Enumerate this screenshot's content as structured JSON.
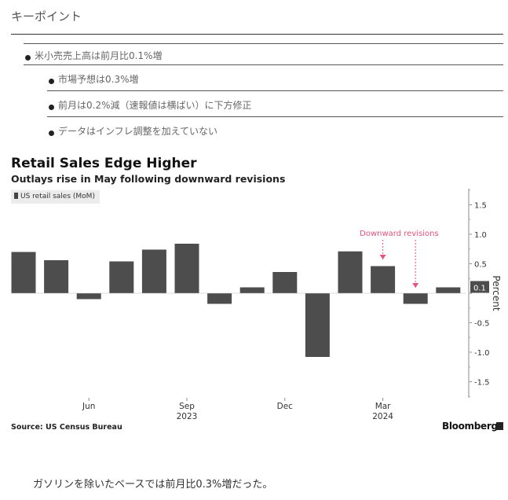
{
  "key_points": {
    "title": "キーポイント",
    "items": [
      "米小売売上高は前月比0.1%増",
      "市場予想は0.3%増",
      "前月は0.2%減（速報値は横ばい）に下方修正",
      "データはインフレ調整を加えていない"
    ]
  },
  "chart_data": {
    "type": "bar",
    "title": "Retail Sales Edge Higher",
    "subtitle": "Outlays rise in May following downward revisions",
    "series": [
      {
        "name": "US retail sales (MoM)",
        "values": [
          0.7,
          0.56,
          -0.1,
          0.54,
          0.74,
          0.84,
          -0.18,
          0.1,
          0.36,
          -1.08,
          0.71,
          0.46,
          -0.18,
          0.1
        ]
      }
    ],
    "categories": [
      "2023-04",
      "2023-05",
      "2023-06",
      "2023-07",
      "2023-08",
      "2023-09",
      "2023-10",
      "2023-11",
      "2023-12",
      "2024-01",
      "2024-02",
      "2024-03",
      "2024-04",
      "2024-05"
    ],
    "x_tick_labels": [
      {
        "category": "2023-06",
        "label": "Jun"
      },
      {
        "category": "2023-09",
        "label": "Sep"
      },
      {
        "category": "2023-12",
        "label": "Dec"
      },
      {
        "category": "2024-03",
        "label": "Mar"
      }
    ],
    "year_labels": [
      {
        "category": "2023-09",
        "label": "2023"
      },
      {
        "category": "2024-03",
        "label": "2024"
      }
    ],
    "y_ticks": [
      1.5,
      1.0,
      0.5,
      0,
      -0.5,
      -1.0,
      -1.5
    ],
    "y_tick_labels": [
      "1.5",
      "1.0",
      "0.5",
      "0",
      "-0.5",
      "-1.0",
      "-1.5"
    ],
    "ylim": [
      -1.75,
      1.75
    ],
    "ylabel": "Percent",
    "last_value_label": "0.1",
    "annotation": {
      "text": "Downward revisions",
      "targets": [
        "2024-03",
        "2024-04"
      ],
      "color": "#e8517a"
    },
    "legend_position": "top-left",
    "grid": false,
    "source": "Source: US Census Bureau",
    "brand": "Bloomberg",
    "bar_color": "#4d4d4d"
  },
  "footer": {
    "text": "ガソリンを除いたベースでは前月比0.3%増だった。"
  }
}
